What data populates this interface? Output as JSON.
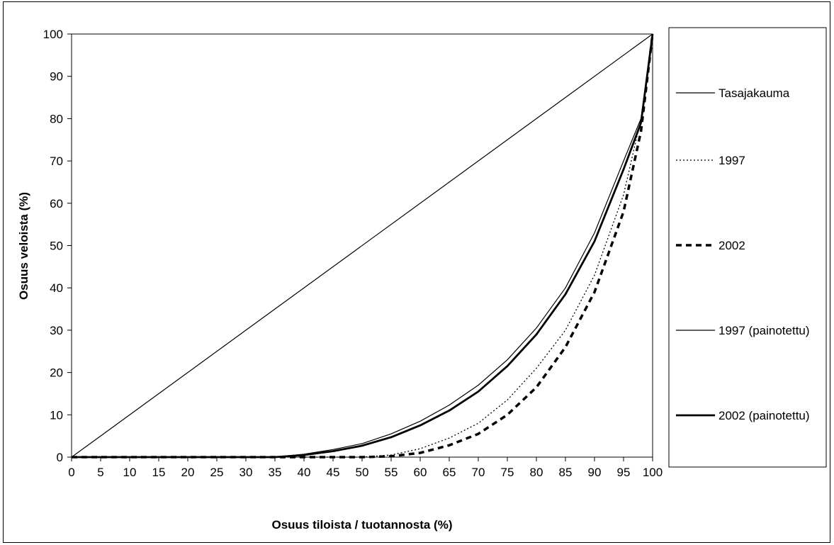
{
  "chart_data": {
    "type": "line",
    "title": "",
    "xlabel": "Osuus tiloista / tuotannosta (%)",
    "ylabel": "Osuus veloista (%)",
    "xlim": [
      0,
      100
    ],
    "ylim": [
      0,
      100
    ],
    "x_ticks": [
      "0",
      "5",
      "10",
      "15",
      "20",
      "25",
      "30",
      "35",
      "40",
      "45",
      "50",
      "55",
      "60",
      "65",
      "70",
      "75",
      "80",
      "85",
      "90",
      "95",
      "100"
    ],
    "y_ticks": [
      "0",
      "10",
      "20",
      "30",
      "40",
      "50",
      "60",
      "70",
      "80",
      "90",
      "100"
    ],
    "grid": false,
    "legend_position": "right",
    "series": [
      {
        "name": "Tasajakauma",
        "style": "thin-solid",
        "x": [
          0,
          100
        ],
        "y": [
          0,
          100
        ]
      },
      {
        "name": "1997",
        "style": "thin-dotted",
        "x": [
          0,
          50,
          55,
          60,
          65,
          70,
          75,
          80,
          85,
          90,
          95,
          98,
          100
        ],
        "y": [
          0,
          0,
          0.5,
          2,
          4.5,
          8,
          13.5,
          21,
          30,
          43,
          62,
          80,
          100
        ]
      },
      {
        "name": "2002",
        "style": "thick-dashed",
        "x": [
          0,
          50,
          55,
          60,
          65,
          70,
          75,
          80,
          85,
          90,
          95,
          98,
          100
        ],
        "y": [
          0,
          0,
          0.2,
          1,
          2.8,
          5.5,
          10,
          16.5,
          26,
          39,
          58,
          77,
          100
        ]
      },
      {
        "name": "1997 (painotettu)",
        "style": "thin-solid",
        "x": [
          0,
          35,
          40,
          45,
          50,
          55,
          60,
          65,
          70,
          75,
          80,
          85,
          90,
          95,
          98,
          100
        ],
        "y": [
          0,
          0,
          0.7,
          1.8,
          3.2,
          5.5,
          8.5,
          12.3,
          17,
          23,
          30.5,
          40,
          53,
          70,
          80,
          100
        ]
      },
      {
        "name": "2002 (painotettu)",
        "style": "thick-solid",
        "x": [
          0,
          35,
          40,
          45,
          50,
          55,
          60,
          65,
          70,
          75,
          80,
          85,
          90,
          95,
          98,
          100
        ],
        "y": [
          0,
          0,
          0.5,
          1.4,
          2.7,
          4.7,
          7.5,
          11,
          15.5,
          21.5,
          29,
          38.5,
          51,
          68,
          79,
          100
        ]
      }
    ]
  }
}
